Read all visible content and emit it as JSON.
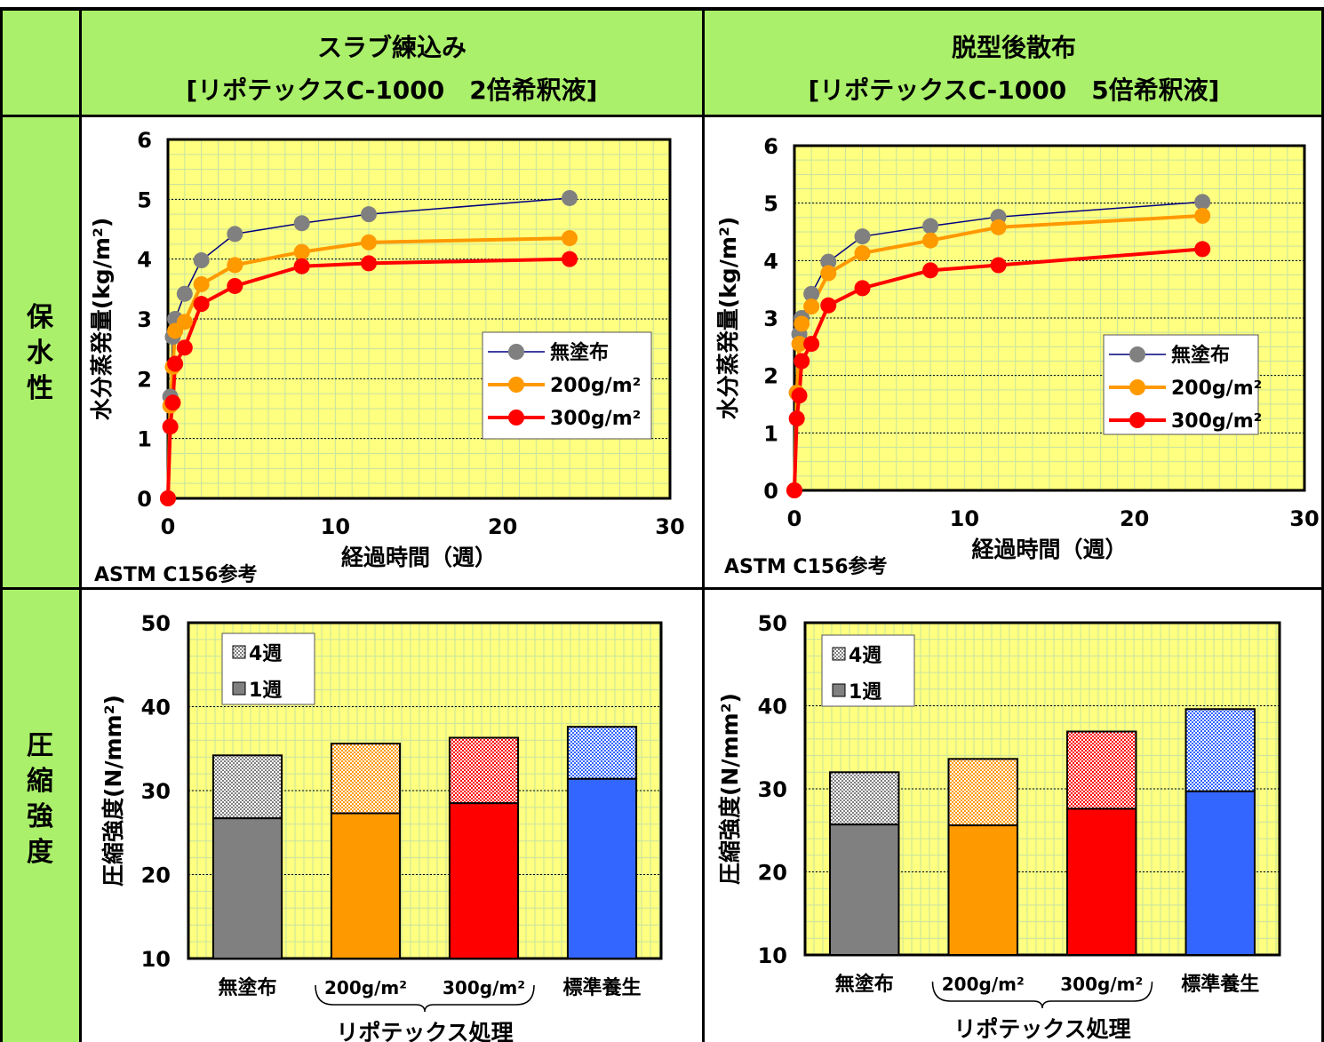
{
  "headers": {
    "left_title": "スラブ練込み",
    "left_subtitle": "[リポテックスC-1000　2倍希釈液]",
    "right_title": "脱型後散布",
    "right_subtitle": "[リポテックスC-1000　5倍希釈液]"
  },
  "row_labels": {
    "retention": [
      "保",
      "水",
      "性"
    ],
    "strength": [
      "圧",
      "縮",
      "強",
      "度"
    ]
  },
  "colors": {
    "header_bg": "#aaf06a",
    "plot_bg": "#ffff80",
    "grid": "#c6e3a0",
    "none": "#808080",
    "g200": "#ff9900",
    "g300": "#ff0000",
    "standard": "#3366ff",
    "line_none": "#000080"
  },
  "chart_data": [
    {
      "id": "retention-left",
      "type": "line",
      "xlabel": "経過時間（週）",
      "ylabel": "水分蒸発量(kg/m²)",
      "note": "ASTM C156参考",
      "xlim": [
        0,
        30
      ],
      "ylim": [
        0,
        6
      ],
      "xticks": [
        0,
        10,
        20,
        30
      ],
      "yticks": [
        0,
        1,
        2,
        3,
        4,
        5,
        6
      ],
      "legend_position": "right-middle",
      "series": [
        {
          "name": "無塗布",
          "x": [
            0,
            0.14,
            0.29,
            0.43,
            1,
            2,
            4,
            8,
            12,
            24
          ],
          "y": [
            0,
            1.7,
            2.7,
            3.0,
            3.42,
            3.98,
            4.42,
            4.6,
            4.75,
            5.02
          ]
        },
        {
          "name": "200g/m²",
          "x": [
            0,
            0.14,
            0.29,
            0.43,
            1,
            2,
            4,
            8,
            12,
            24
          ],
          "y": [
            0,
            1.55,
            2.2,
            2.8,
            2.95,
            3.58,
            3.9,
            4.12,
            4.28,
            4.35
          ]
        },
        {
          "name": "300g/m²",
          "x": [
            0,
            0.14,
            0.29,
            0.43,
            1,
            2,
            4,
            8,
            12,
            24
          ],
          "y": [
            0,
            1.2,
            1.6,
            2.25,
            2.52,
            3.25,
            3.55,
            3.88,
            3.93,
            4.0
          ]
        }
      ]
    },
    {
      "id": "retention-right",
      "type": "line",
      "xlabel": "経過時間（週）",
      "ylabel": "水分蒸発量(kg/m²)",
      "note": "ASTM C156参考",
      "xlim": [
        0,
        30
      ],
      "ylim": [
        0,
        6
      ],
      "xticks": [
        0,
        10,
        20,
        30
      ],
      "yticks": [
        0,
        1,
        2,
        3,
        4,
        5,
        6
      ],
      "legend_position": "right-middle",
      "series": [
        {
          "name": "無塗布",
          "x": [
            0,
            0.14,
            0.29,
            0.43,
            1,
            2,
            4,
            8,
            12,
            24
          ],
          "y": [
            0,
            1.7,
            2.72,
            3.0,
            3.42,
            3.98,
            4.42,
            4.6,
            4.76,
            5.02
          ]
        },
        {
          "name": "200g/m²",
          "x": [
            0,
            0.14,
            0.29,
            0.43,
            1,
            2,
            4,
            8,
            12,
            24
          ],
          "y": [
            0,
            1.7,
            2.55,
            2.9,
            3.2,
            3.78,
            4.13,
            4.35,
            4.58,
            4.78
          ]
        },
        {
          "name": "300g/m²",
          "x": [
            0,
            0.14,
            0.29,
            0.43,
            1,
            2,
            4,
            8,
            12,
            24
          ],
          "y": [
            0,
            1.25,
            1.65,
            2.25,
            2.55,
            3.22,
            3.52,
            3.83,
            3.92,
            4.2
          ]
        }
      ]
    },
    {
      "id": "strength-left",
      "type": "bar",
      "ylabel": "圧縮強度(N/mm²)",
      "ylim": [
        10,
        50
      ],
      "yticks": [
        10,
        20,
        30,
        40,
        50
      ],
      "categories": [
        "無塗布",
        "200g/m²",
        "300g/m²",
        "標準養生"
      ],
      "group_label": "リポテックス処理",
      "legend_position": "top-left",
      "series": [
        {
          "name": "1週",
          "values": [
            26.7,
            27.3,
            28.5,
            31.4
          ]
        },
        {
          "name": "4週",
          "values": [
            34.2,
            35.6,
            36.3,
            37.6
          ]
        }
      ]
    },
    {
      "id": "strength-right",
      "type": "bar",
      "ylabel": "圧縮強度(N/mm²)",
      "ylim": [
        10,
        50
      ],
      "yticks": [
        10,
        20,
        30,
        40,
        50
      ],
      "categories": [
        "無塗布",
        "200g/m²",
        "300g/m²",
        "標準養生"
      ],
      "group_label": "リポテックス処理",
      "legend_position": "top-left",
      "series": [
        {
          "name": "1週",
          "values": [
            25.7,
            25.6,
            27.6,
            29.7
          ]
        },
        {
          "name": "4週",
          "values": [
            32.0,
            33.6,
            36.9,
            39.6
          ]
        }
      ]
    }
  ]
}
